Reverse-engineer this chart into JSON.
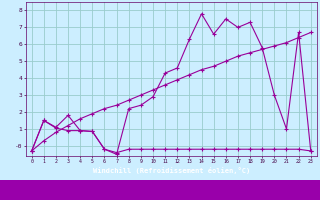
{
  "background_color": "#cceeff",
  "grid_color": "#99cccc",
  "line_color": "#990099",
  "marker_color": "#990099",
  "xlabel": "Windchill (Refroidissement éolien,°C)",
  "xlim": [
    -0.5,
    23.5
  ],
  "ylim": [
    -0.6,
    8.5
  ],
  "yticks": [
    0,
    1,
    2,
    3,
    4,
    5,
    6,
    7,
    8
  ],
  "ytick_labels": [
    "-0",
    "1",
    "2",
    "3",
    "4",
    "5",
    "6",
    "7",
    "8"
  ],
  "xticks": [
    0,
    1,
    2,
    3,
    4,
    5,
    6,
    7,
    8,
    9,
    10,
    11,
    12,
    13,
    14,
    15,
    16,
    17,
    18,
    19,
    20,
    21,
    22,
    23
  ],
  "series1_x": [
    0,
    1,
    2,
    3,
    4,
    5,
    6,
    7,
    8,
    9,
    10,
    11,
    12,
    13,
    14,
    15,
    16,
    17,
    18,
    19,
    20,
    21,
    22,
    23
  ],
  "series1_y": [
    -0.3,
    1.5,
    1.05,
    0.9,
    0.9,
    0.85,
    -0.2,
    -0.4,
    -0.2,
    -0.2,
    -0.2,
    -0.2,
    -0.2,
    -0.2,
    -0.2,
    -0.2,
    -0.2,
    -0.2,
    -0.2,
    -0.2,
    -0.2,
    -0.2,
    -0.2,
    -0.3
  ],
  "series2_x": [
    0,
    1,
    2,
    3,
    4,
    5,
    6,
    7,
    8,
    9,
    10,
    11,
    12,
    13,
    14,
    15,
    16,
    17,
    18,
    19,
    20,
    21,
    22,
    23
  ],
  "series2_y": [
    -0.3,
    1.5,
    1.1,
    1.8,
    0.9,
    0.85,
    -0.2,
    -0.5,
    2.2,
    2.4,
    2.9,
    4.3,
    4.6,
    6.3,
    7.8,
    6.6,
    7.5,
    7.0,
    7.3,
    5.8,
    3.0,
    1.0,
    6.7,
    -0.3
  ],
  "series3_x": [
    0,
    1,
    2,
    3,
    4,
    5,
    6,
    7,
    8,
    9,
    10,
    11,
    12,
    13,
    14,
    15,
    16,
    17,
    18,
    19,
    20,
    21,
    22,
    23
  ],
  "series3_y": [
    -0.3,
    0.3,
    0.8,
    1.2,
    1.6,
    1.9,
    2.2,
    2.4,
    2.7,
    3.0,
    3.3,
    3.6,
    3.9,
    4.2,
    4.5,
    4.7,
    5.0,
    5.3,
    5.5,
    5.7,
    5.9,
    6.1,
    6.4,
    6.7
  ]
}
